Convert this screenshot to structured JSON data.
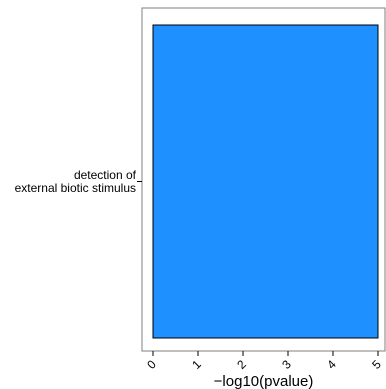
{
  "chart_data": {
    "type": "bar",
    "orientation": "horizontal",
    "categories": [
      "detection of\nexternal biotic stimulus"
    ],
    "values": [
      5.0
    ],
    "xlabel": "−log10(pvalue)",
    "ylabel": "",
    "xlim": [
      0,
      5
    ],
    "xticks": [
      "0",
      "1",
      "2",
      "3",
      "4",
      "5"
    ],
    "bar_color": "#1E90FF",
    "bar_edge_color": "#000000",
    "grid": false,
    "legend": "none"
  }
}
